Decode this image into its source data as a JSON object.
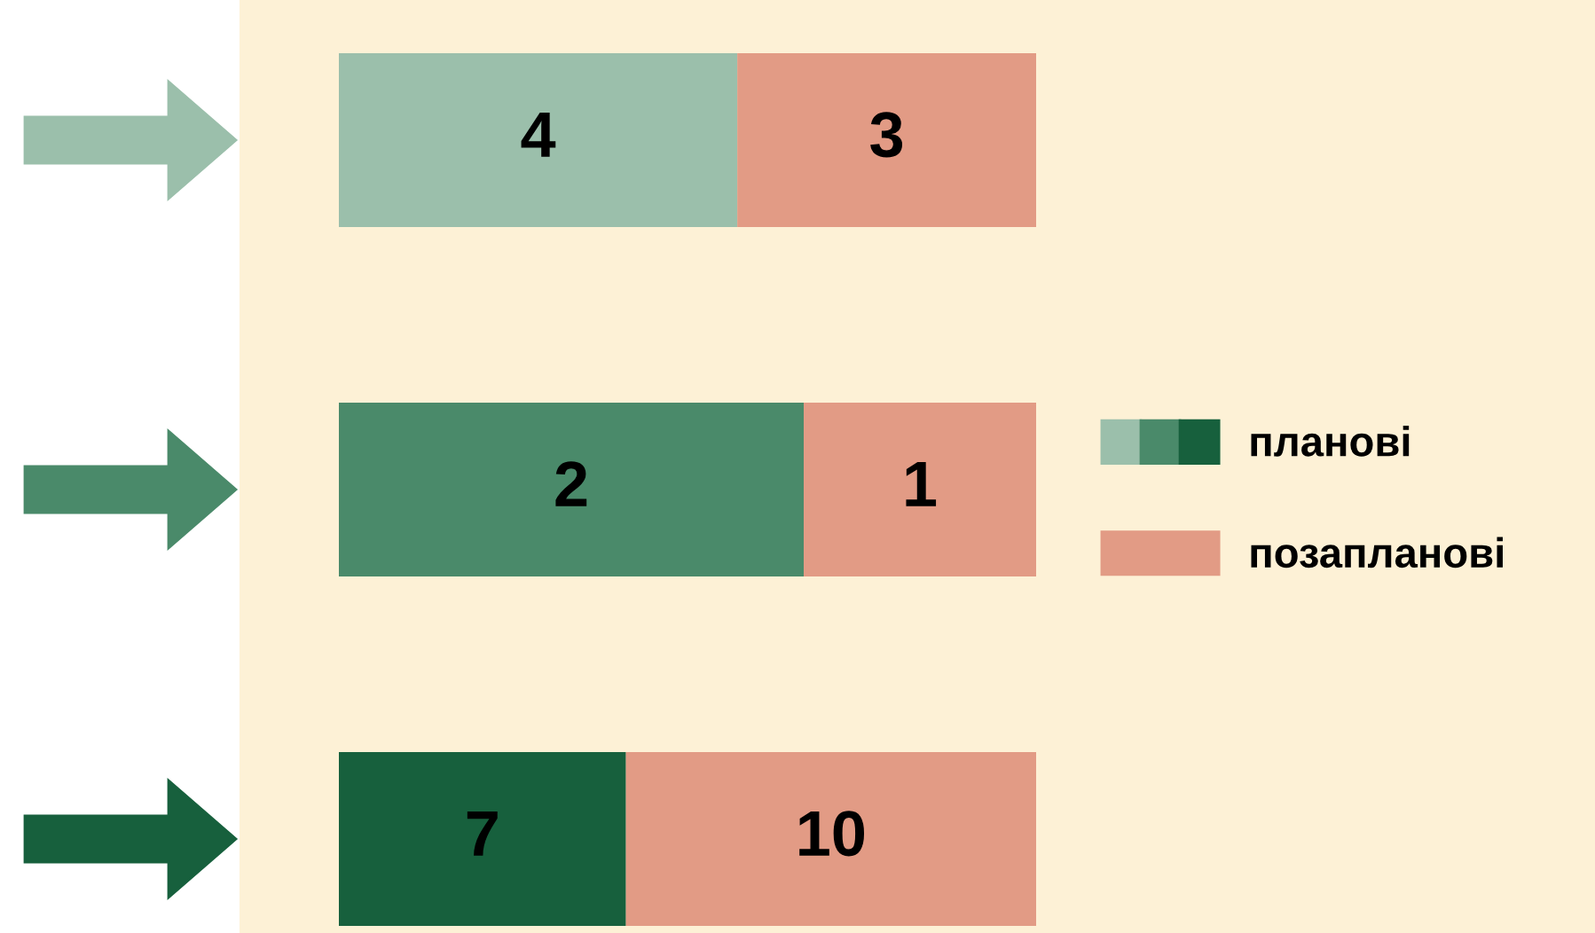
{
  "chart_data": [
    {
      "type": "bar",
      "orientation": "horizontal",
      "stacked": true,
      "data_labels": true,
      "categories": [
        null
      ],
      "series": [
        {
          "color": "#9bbfab",
          "values": [
            4
          ]
        },
        {
          "color": "#e29b85",
          "values": [
            3
          ]
        }
      ]
    },
    {
      "type": "bar",
      "orientation": "horizontal",
      "stacked": true,
      "data_labels": true,
      "categories": [
        null
      ],
      "legend": "right",
      "series": [
        {
          "name": "планові",
          "color": "#4a8a6a",
          "values": [
            2
          ]
        },
        {
          "name": "позапланові",
          "color": "#e29b85",
          "values": [
            1
          ]
        }
      ]
    },
    {
      "type": "bar",
      "orientation": "horizontal",
      "stacked": true,
      "data_labels": true,
      "categories": [
        null
      ],
      "series": [
        {
          "color": "#17603d",
          "values": [
            7
          ]
        },
        {
          "color": "#e29b85",
          "values": [
            10
          ]
        }
      ]
    }
  ]
}
